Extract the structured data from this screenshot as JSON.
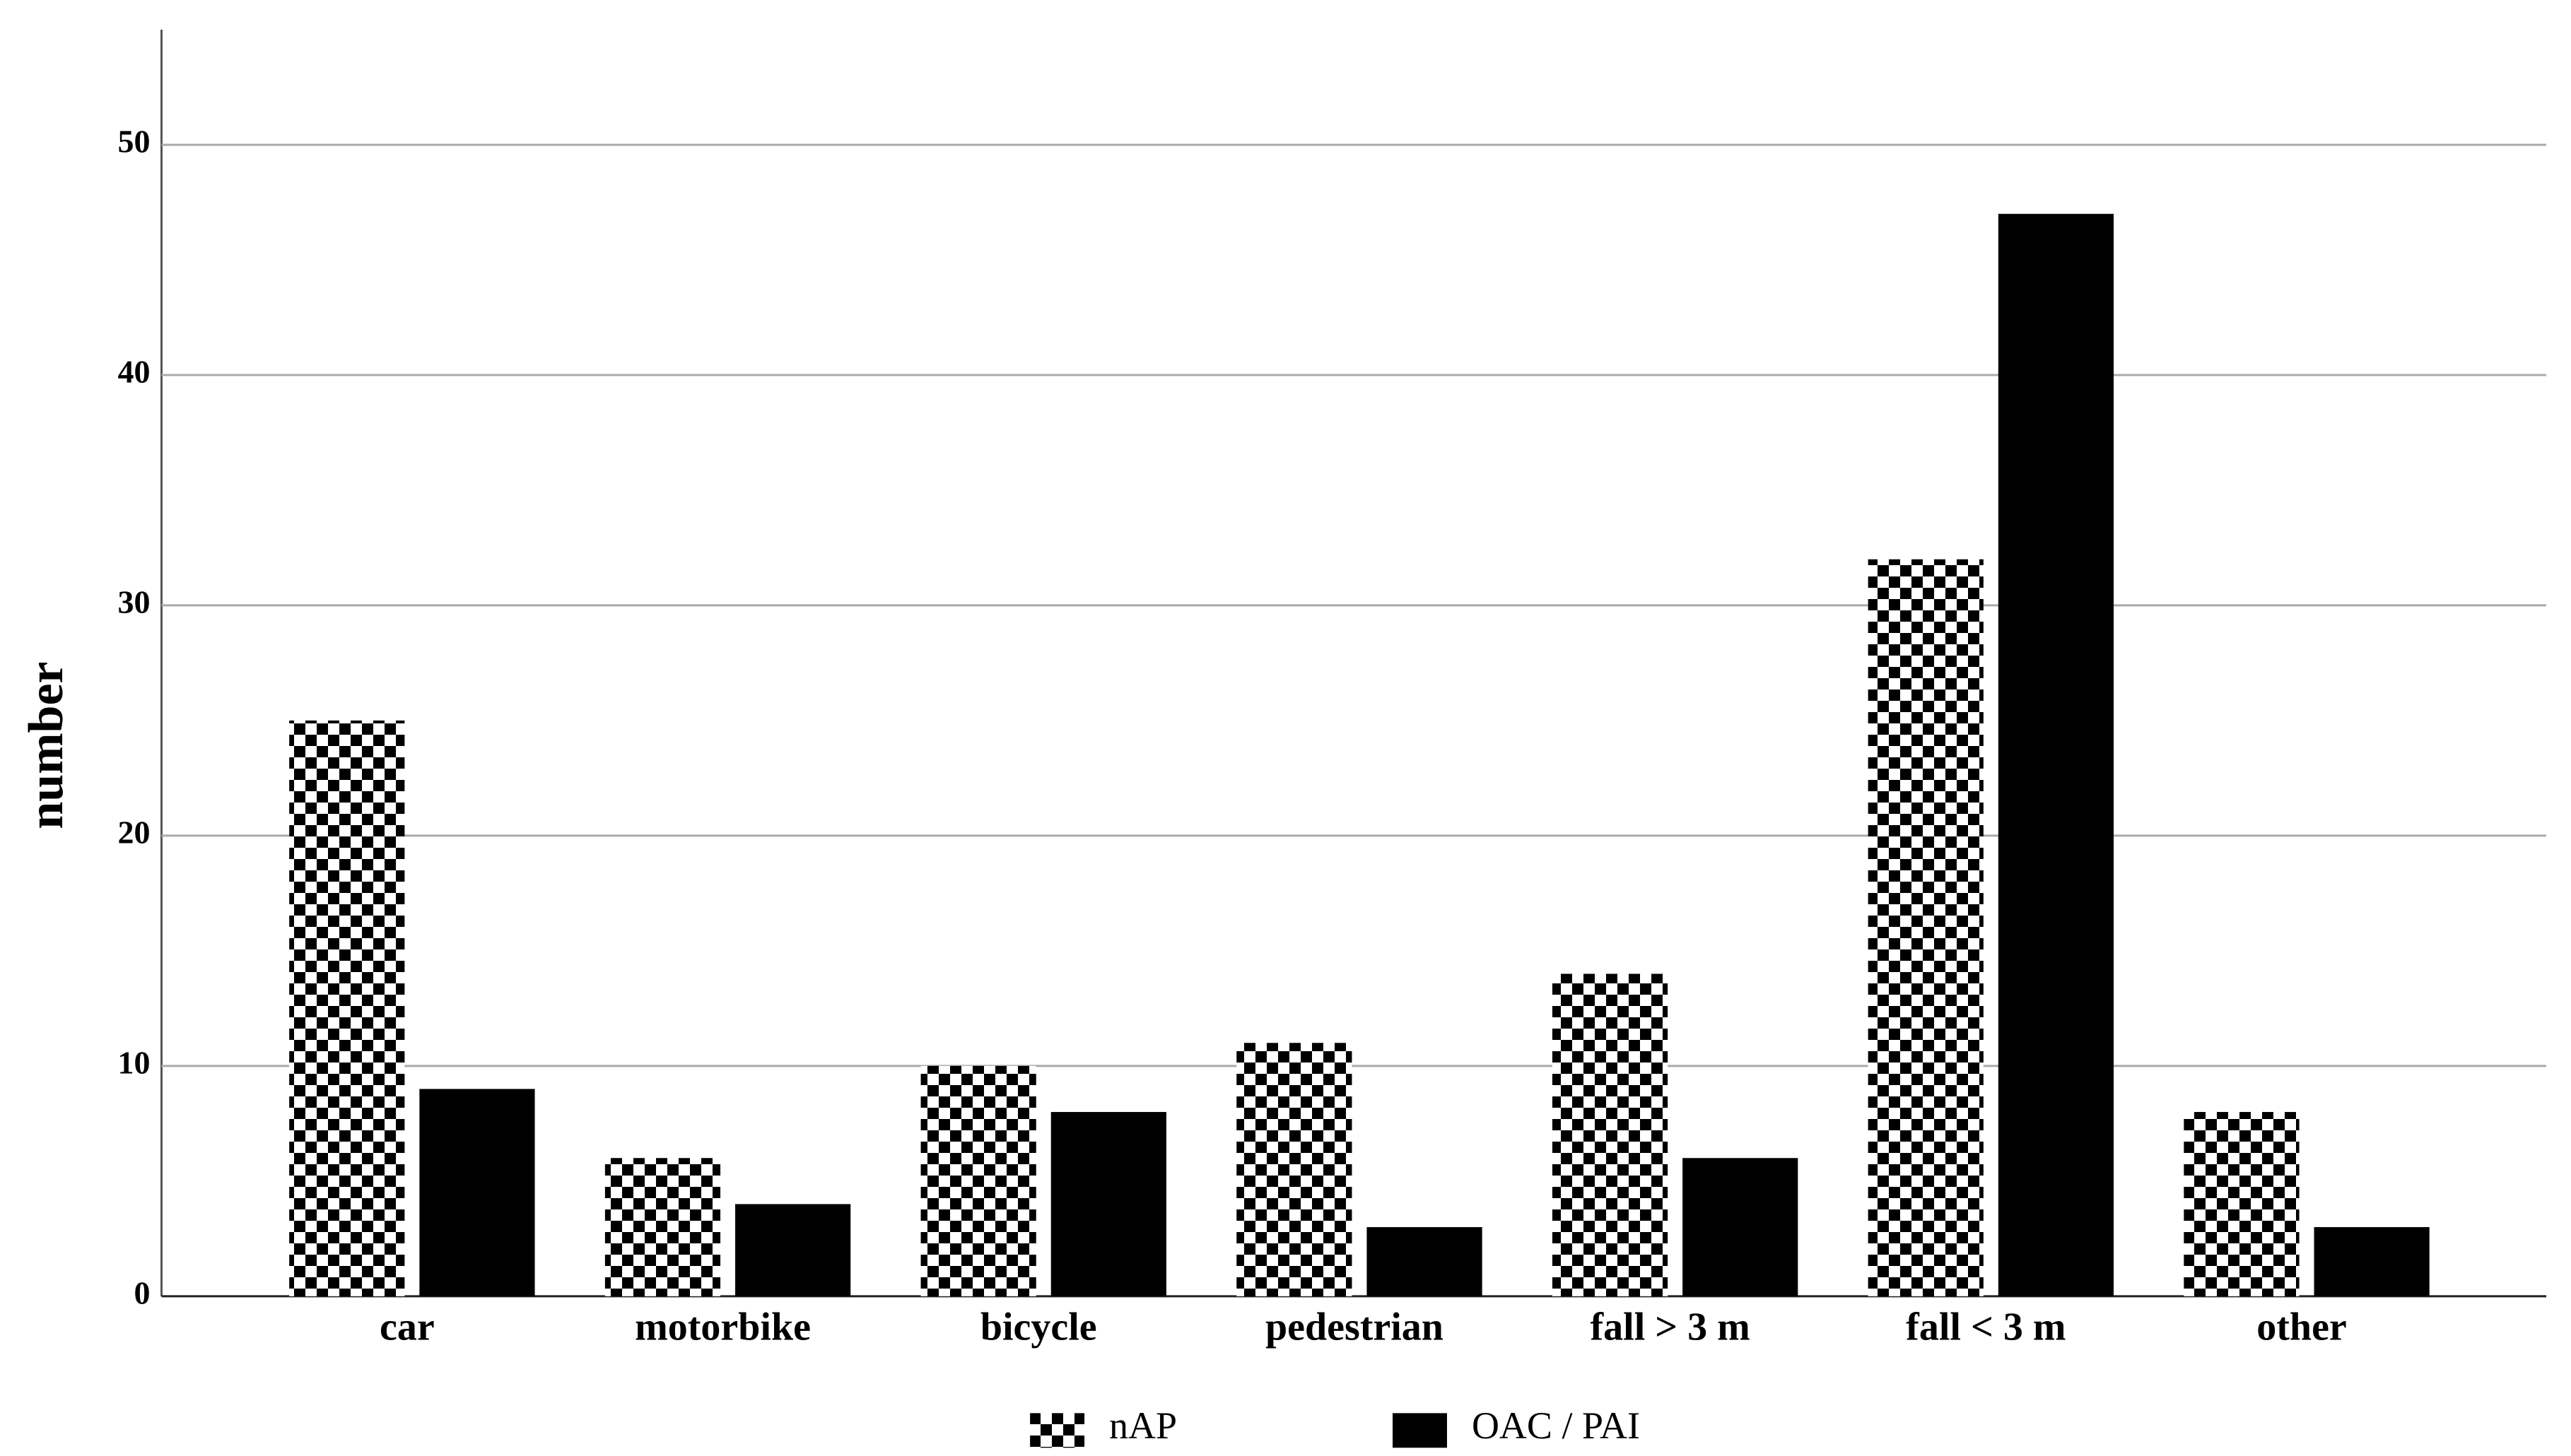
{
  "chart_data": {
    "type": "bar",
    "y_label": "number",
    "categories": [
      "car",
      "motorbike",
      "bicycle",
      "pedestrian",
      "fall > 3 m",
      "fall < 3 m",
      "other"
    ],
    "series": [
      {
        "name": "nAP",
        "color": "#000000",
        "pattern": "checker",
        "values": [
          25,
          6,
          10,
          11,
          14,
          32,
          8
        ]
      },
      {
        "name": "OAC / PAI",
        "color": "#000000",
        "values": [
          9,
          4,
          8,
          3,
          6,
          47,
          3
        ]
      }
    ],
    "ylim": [
      0,
      55
    ],
    "yticks": [
      0,
      10,
      20,
      30,
      40,
      50
    ],
    "grid": true
  }
}
